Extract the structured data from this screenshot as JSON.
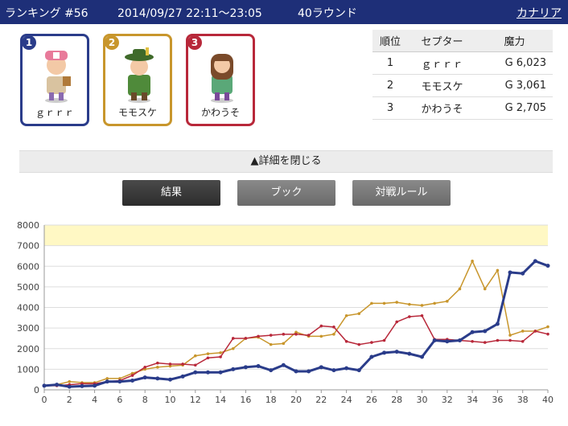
{
  "header": {
    "ranking": "ランキング #56",
    "datetime": "2014/09/27 22:11〜23:05",
    "rounds": "40ラウンド",
    "server": "カナリア"
  },
  "players": [
    {
      "rank": "1",
      "name": "ｇｒｒｒ",
      "color": "#2a3c8a"
    },
    {
      "rank": "2",
      "name": "モモスケ",
      "color": "#c8962c"
    },
    {
      "rank": "3",
      "name": "かわうそ",
      "color": "#b8283a"
    }
  ],
  "table": {
    "headers": [
      "順位",
      "セプター",
      "魔力"
    ],
    "rows": [
      {
        "rank": "1",
        "name": "ｇｒｒｒ",
        "power": "G 6,023"
      },
      {
        "rank": "2",
        "name": "モモスケ",
        "power": "G 3,061"
      },
      {
        "rank": "3",
        "name": "かわうそ",
        "power": "G 2,705"
      }
    ]
  },
  "detail_toggle": "▲詳細を閉じる",
  "tabs": [
    "結果",
    "ブック",
    "対戦ルール"
  ],
  "chart_data": {
    "type": "line",
    "ylim": [
      0,
      8000
    ],
    "yticks": [
      0,
      1000,
      2000,
      3000,
      4000,
      5000,
      6000,
      7000,
      8000
    ],
    "xlim": [
      0,
      40
    ],
    "xticks": [
      0,
      2,
      4,
      6,
      8,
      10,
      12,
      14,
      16,
      18,
      20,
      22,
      24,
      26,
      28,
      30,
      32,
      34,
      36,
      38,
      40
    ],
    "highlight_band": [
      7000,
      8000
    ],
    "series": [
      {
        "color": "#2a3c8a",
        "values": [
          200,
          250,
          150,
          180,
          200,
          400,
          400,
          450,
          600,
          550,
          500,
          650,
          850,
          850,
          850,
          1000,
          1100,
          1150,
          950,
          1200,
          900,
          900,
          1100,
          950,
          1050,
          950,
          1600,
          1800,
          1850,
          1750,
          1600,
          2400,
          2350,
          2400,
          2800,
          2850,
          3200,
          5700,
          5650,
          6250,
          6023
        ]
      },
      {
        "color": "#c8962c",
        "values": [
          200,
          250,
          400,
          350,
          350,
          550,
          550,
          800,
          1000,
          1100,
          1150,
          1200,
          1650,
          1750,
          1800,
          2000,
          2500,
          2550,
          2200,
          2250,
          2800,
          2600,
          2600,
          2700,
          3600,
          3700,
          4200,
          4200,
          4250,
          4150,
          4100,
          4200,
          4300,
          4900,
          6250,
          4900,
          5800,
          2650,
          2850,
          2850,
          3061
        ]
      },
      {
        "color": "#b8283a",
        "values": [
          200,
          200,
          250,
          300,
          300,
          400,
          450,
          700,
          1100,
          1300,
          1250,
          1250,
          1200,
          1550,
          1600,
          2500,
          2500,
          2600,
          2650,
          2700,
          2700,
          2650,
          3100,
          3050,
          2350,
          2200,
          2300,
          2400,
          3300,
          3550,
          3600,
          2450,
          2450,
          2400,
          2350,
          2300,
          2400,
          2400,
          2350,
          2850,
          2705
        ]
      }
    ]
  }
}
